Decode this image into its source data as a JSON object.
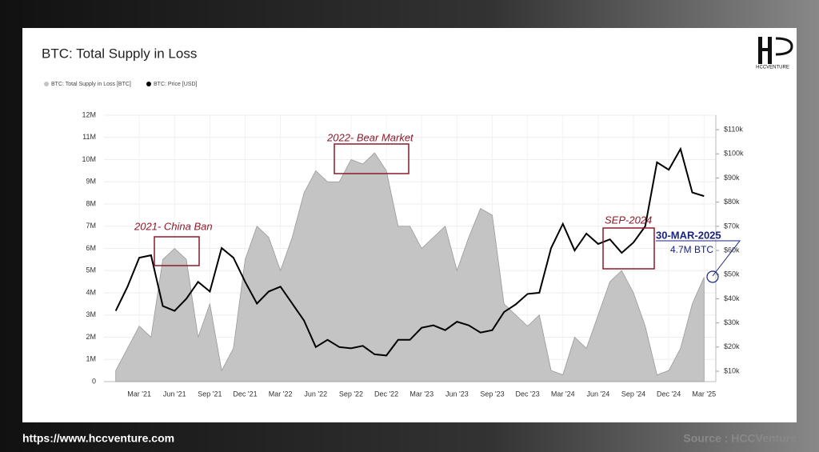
{
  "chart_data": {
    "type": "area-line",
    "title": "BTC: Total Supply in Loss",
    "logo": "HCCVENTURE",
    "footer_url": "https://www.hccventure.com",
    "footer_source": "Source : HCCVenture",
    "annotations": [
      "2021- China Ban",
      "2022- Bear Market",
      "SEP-2024",
      "30-MAR-2025",
      "4.7M BTC"
    ],
    "x": [
      "2021-01",
      "2021-02",
      "2021-03",
      "2021-04",
      "2021-05",
      "2021-06",
      "2021-07",
      "2021-08",
      "2021-09",
      "2021-10",
      "2021-11",
      "2021-12",
      "2022-01",
      "2022-02",
      "2022-03",
      "2022-04",
      "2022-05",
      "2022-06",
      "2022-07",
      "2022-08",
      "2022-09",
      "2022-10",
      "2022-11",
      "2022-12",
      "2023-01",
      "2023-02",
      "2023-03",
      "2023-04",
      "2023-05",
      "2023-06",
      "2023-07",
      "2023-08",
      "2023-09",
      "2023-10",
      "2023-11",
      "2023-12",
      "2024-01",
      "2024-02",
      "2024-03",
      "2024-04",
      "2024-05",
      "2024-06",
      "2024-07",
      "2024-08",
      "2024-09",
      "2024-10",
      "2024-11",
      "2024-12",
      "2025-01",
      "2025-02",
      "2025-03"
    ],
    "xlim": [
      "2020-12",
      "2025-04"
    ],
    "xticks": [
      {
        "value": "2021-03",
        "label": "Mar '21"
      },
      {
        "value": "2021-06",
        "label": "Jun '21"
      },
      {
        "value": "2021-09",
        "label": "Sep '21"
      },
      {
        "value": "2021-12",
        "label": "Dec '21"
      },
      {
        "value": "2022-03",
        "label": "Mar '22"
      },
      {
        "value": "2022-06",
        "label": "Jun '22"
      },
      {
        "value": "2022-09",
        "label": "Sep '22"
      },
      {
        "value": "2022-12",
        "label": "Dec '22"
      },
      {
        "value": "2023-03",
        "label": "Mar '23"
      },
      {
        "value": "2023-06",
        "label": "Jun '23"
      },
      {
        "value": "2023-09",
        "label": "Sep '23"
      },
      {
        "value": "2023-12",
        "label": "Dec '23"
      },
      {
        "value": "2024-03",
        "label": "Mar '24"
      },
      {
        "value": "2024-06",
        "label": "Jun '24"
      },
      {
        "value": "2024-09",
        "label": "Sep '24"
      },
      {
        "value": "2024-12",
        "label": "Dec '24"
      },
      {
        "value": "2025-03",
        "label": "Mar '25"
      }
    ],
    "ylim": [
      0,
      12000000
    ],
    "yticks": [
      0,
      {
        "value": 1000000,
        "label": "1M"
      },
      {
        "value": 2000000,
        "label": "2M"
      },
      {
        "value": 3000000,
        "label": "3M"
      },
      {
        "value": 4000000,
        "label": "4M"
      },
      {
        "value": 5000000,
        "label": "5M"
      },
      {
        "value": 6000000,
        "label": "6M"
      },
      {
        "value": 7000000,
        "label": "7M"
      },
      {
        "value": 8000000,
        "label": "8M"
      },
      {
        "value": 9000000,
        "label": "9M"
      },
      {
        "value": 10000000,
        "label": "10M"
      },
      {
        "value": 11000000,
        "label": "11M"
      },
      {
        "value": 12000000,
        "label": "12M"
      }
    ],
    "y2lim": [
      5700,
      116000
    ],
    "y2ticks": [
      {
        "value": 10000,
        "label": "$10k"
      },
      {
        "value": 20000,
        "label": "$20k"
      },
      {
        "value": 30000,
        "label": "$30k"
      },
      {
        "value": 40000,
        "label": "$40k"
      },
      {
        "value": 50000,
        "label": "$50k"
      },
      {
        "value": 60000,
        "label": "$60k"
      },
      {
        "value": 70000,
        "label": "$70k"
      },
      {
        "value": 80000,
        "label": "$80k"
      },
      {
        "value": 90000,
        "label": "$90k"
      },
      {
        "value": 100000,
        "label": "$100k"
      },
      {
        "value": 110000,
        "label": "$110k"
      }
    ],
    "grid": true,
    "series": [
      {
        "name": "BTC: Total Supply in Loss [BTC]",
        "color": "#c4c4c4",
        "kind": "area",
        "values": [
          500000,
          1500000,
          2500000,
          2000000,
          5500000,
          6000000,
          5500000,
          2000000,
          3500000,
          500000,
          1500000,
          5500000,
          7000000,
          6500000,
          5000000,
          6500000,
          8500000,
          9500000,
          9000000,
          9000000,
          10000000,
          9800000,
          10300000,
          9500000,
          7000000,
          7000000,
          6000000,
          6500000,
          7000000,
          5000000,
          6500000,
          7800000,
          7500000,
          3500000,
          3000000,
          2500000,
          3000000,
          500000,
          300000,
          2000000,
          1500000,
          3000000,
          4500000,
          5000000,
          4000000,
          2500000,
          300000,
          500000,
          1500000,
          3500000,
          4700000
        ]
      },
      {
        "name": "BTC: Price [USD]",
        "color": "#000000",
        "kind": "line",
        "axis": "y2",
        "values": [
          35000,
          45000,
          57000,
          58000,
          37000,
          35000,
          40000,
          47000,
          43000,
          61000,
          57000,
          47000,
          38000,
          43000,
          45000,
          38000,
          31000,
          20000,
          23000,
          20000,
          19500,
          20500,
          17000,
          16500,
          23000,
          23000,
          28000,
          29000,
          27000,
          30500,
          29000,
          26000,
          27000,
          34500,
          37700,
          42000,
          42500,
          61000,
          71000,
          60000,
          67000,
          62700,
          64600,
          59000,
          63300,
          70000,
          96500,
          93400,
          102000,
          84000,
          82500
        ]
      }
    ]
  }
}
